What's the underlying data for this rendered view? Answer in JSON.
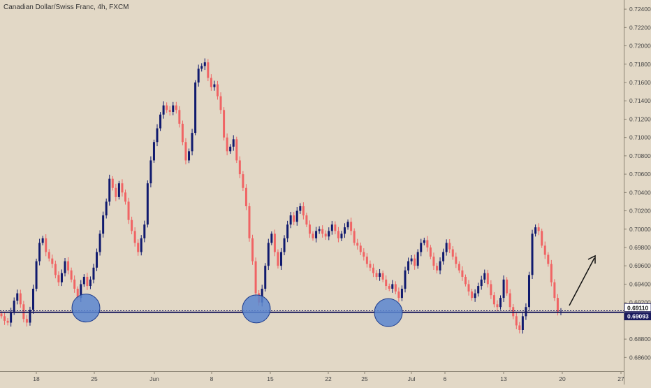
{
  "symbol_title": "Canadian Dollar/Swiss Franc, 4h, FXCM",
  "colors": {
    "background": "#e2d8c6",
    "up_candle": "#101a6e",
    "down_candle": "#f06464",
    "support_line": "#1a1a5e",
    "circle_fill": "#5b86cf",
    "circle_stroke": "#1e3c8c",
    "arrow": "#111111",
    "axis_text": "#444444"
  },
  "chart_data": {
    "type": "candlestick",
    "title": "Canadian Dollar/Swiss Franc, 4h, FXCM",
    "x_tick_labels": [
      "18",
      "25",
      "Jun",
      "8",
      "15",
      "22",
      "25",
      "Jul",
      "6",
      "13",
      "20",
      "27"
    ],
    "y_tick_labels": [
      "0.72400",
      "0.72200",
      "0.72000",
      "0.71800",
      "0.71600",
      "0.71400",
      "0.71200",
      "0.71000",
      "0.70800",
      "0.70600",
      "0.70400",
      "0.70200",
      "0.70000",
      "0.69800",
      "0.69600",
      "0.69400",
      "0.69200",
      "0.68800",
      "0.68600"
    ],
    "ylim": [
      0.6845,
      0.725
    ],
    "price_labels": [
      "0.69110",
      "0.69093"
    ],
    "support_level": 0.69093,
    "dashed_level": 0.6911,
    "support_touch_circles": [
      0.6917,
      0.6916,
      0.6912
    ],
    "arrow_direction": "up-right",
    "closes": [
      0.6905,
      0.69,
      0.6898,
      0.691,
      0.6922,
      0.693,
      0.6918,
      0.6902,
      0.6898,
      0.6912,
      0.6935,
      0.6965,
      0.6985,
      0.699,
      0.6975,
      0.6968,
      0.6962,
      0.695,
      0.6942,
      0.6952,
      0.6965,
      0.6955,
      0.6945,
      0.6935,
      0.6925,
      0.694,
      0.6948,
      0.6938,
      0.6945,
      0.6958,
      0.6975,
      0.6995,
      0.7015,
      0.703,
      0.7055,
      0.7045,
      0.7035,
      0.705,
      0.704,
      0.703,
      0.701,
      0.6998,
      0.6985,
      0.6975,
      0.699,
      0.7005,
      0.705,
      0.7075,
      0.7095,
      0.711,
      0.7125,
      0.7135,
      0.713,
      0.7128,
      0.7135,
      0.713,
      0.7115,
      0.7095,
      0.7075,
      0.7085,
      0.7105,
      0.716,
      0.7175,
      0.7178,
      0.7182,
      0.7165,
      0.7155,
      0.7158,
      0.7145,
      0.713,
      0.71,
      0.7085,
      0.709,
      0.7098,
      0.7075,
      0.706,
      0.7045,
      0.7025,
      0.699,
      0.6965,
      0.693,
      0.692,
      0.6935,
      0.696,
      0.6985,
      0.6995,
      0.6975,
      0.696,
      0.6975,
      0.699,
      0.7005,
      0.7015,
      0.7008,
      0.702,
      0.7025,
      0.7015,
      0.7005,
      0.6995,
      0.699,
      0.6998,
      0.7,
      0.6995,
      0.6992,
      0.6998,
      0.7005,
      0.6998,
      0.699,
      0.6995,
      0.7002,
      0.7008,
      0.6998,
      0.6985,
      0.6982,
      0.6975,
      0.697,
      0.6962,
      0.6958,
      0.6952,
      0.6948,
      0.6952,
      0.6945,
      0.6938,
      0.6935,
      0.694,
      0.6932,
      0.6925,
      0.6935,
      0.6955,
      0.6965,
      0.6968,
      0.696,
      0.6975,
      0.6985,
      0.6988,
      0.698,
      0.697,
      0.696,
      0.6955,
      0.6965,
      0.6975,
      0.6985,
      0.6978,
      0.697,
      0.6962,
      0.6955,
      0.6948,
      0.694,
      0.6932,
      0.6925,
      0.693,
      0.6938,
      0.6945,
      0.6952,
      0.694,
      0.6928,
      0.6918,
      0.6915,
      0.6925,
      0.6945,
      0.693,
      0.6915,
      0.6905,
      0.6895,
      0.689,
      0.6905,
      0.6915,
      0.695,
      0.6995,
      0.7002,
      0.6998,
      0.6982,
      0.6972,
      0.6962,
      0.6942,
      0.6925,
      0.691,
      0.691
    ]
  }
}
